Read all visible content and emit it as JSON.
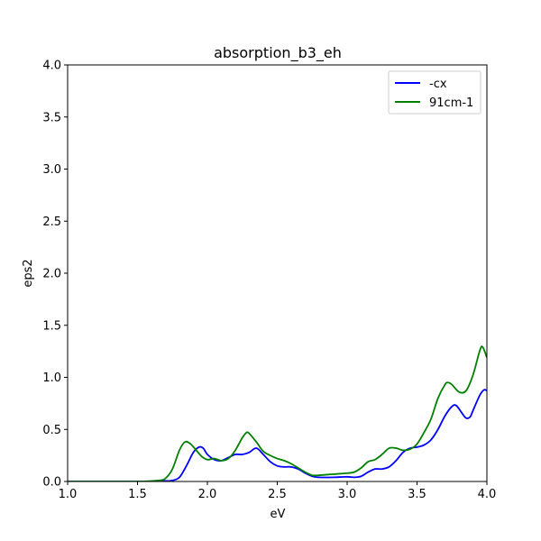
{
  "chart_data": {
    "type": "line",
    "title": "absorption_b3_eh",
    "xlabel": "eV",
    "ylabel": "eps2",
    "xlim": [
      1.0,
      4.0
    ],
    "ylim": [
      0.0,
      4.0
    ],
    "x_ticks": [
      "1.0",
      "1.5",
      "2.0",
      "2.5",
      "3.0",
      "3.5",
      "4.0"
    ],
    "y_ticks": [
      "0.0",
      "0.5",
      "1.0",
      "1.5",
      "2.0",
      "2.5",
      "3.0",
      "3.5",
      "4.0"
    ],
    "grid": false,
    "legend_position": "upper-right",
    "series": [
      {
        "name": "-cx",
        "color": "#0000ff",
        "x": [
          1.0,
          1.5,
          1.7,
          1.75,
          1.8,
          1.85,
          1.9,
          1.94,
          1.97,
          2.0,
          2.05,
          2.1,
          2.15,
          2.2,
          2.25,
          2.3,
          2.35,
          2.4,
          2.45,
          2.5,
          2.55,
          2.6,
          2.65,
          2.7,
          2.75,
          2.8,
          2.9,
          3.0,
          3.05,
          3.1,
          3.15,
          3.2,
          3.25,
          3.3,
          3.35,
          3.4,
          3.45,
          3.5,
          3.55,
          3.6,
          3.65,
          3.7,
          3.75,
          3.78,
          3.82,
          3.85,
          3.88,
          3.9,
          3.95,
          3.98,
          4.0
        ],
        "y": [
          0.0,
          0.0,
          0.005,
          0.01,
          0.04,
          0.15,
          0.28,
          0.33,
          0.32,
          0.26,
          0.21,
          0.2,
          0.23,
          0.26,
          0.26,
          0.28,
          0.32,
          0.26,
          0.19,
          0.15,
          0.14,
          0.14,
          0.12,
          0.08,
          0.05,
          0.04,
          0.04,
          0.045,
          0.04,
          0.05,
          0.09,
          0.12,
          0.12,
          0.14,
          0.2,
          0.28,
          0.32,
          0.33,
          0.35,
          0.4,
          0.5,
          0.63,
          0.72,
          0.73,
          0.66,
          0.61,
          0.62,
          0.68,
          0.83,
          0.88,
          0.87
        ]
      },
      {
        "name": "91cm-1",
        "color": "#008000",
        "x": [
          1.0,
          1.5,
          1.65,
          1.7,
          1.75,
          1.8,
          1.84,
          1.88,
          1.92,
          1.96,
          2.0,
          2.05,
          2.1,
          2.15,
          2.2,
          2.25,
          2.28,
          2.3,
          2.35,
          2.4,
          2.45,
          2.5,
          2.55,
          2.6,
          2.65,
          2.7,
          2.75,
          2.8,
          2.9,
          3.0,
          3.05,
          3.1,
          3.15,
          3.2,
          3.25,
          3.3,
          3.35,
          3.4,
          3.45,
          3.5,
          3.55,
          3.6,
          3.65,
          3.7,
          3.72,
          3.75,
          3.8,
          3.85,
          3.9,
          3.95,
          3.97,
          4.0
        ],
        "y": [
          0.0,
          0.0,
          0.01,
          0.03,
          0.12,
          0.3,
          0.38,
          0.36,
          0.3,
          0.24,
          0.21,
          0.22,
          0.2,
          0.22,
          0.3,
          0.42,
          0.47,
          0.46,
          0.38,
          0.29,
          0.25,
          0.22,
          0.2,
          0.17,
          0.13,
          0.09,
          0.06,
          0.06,
          0.07,
          0.08,
          0.09,
          0.13,
          0.19,
          0.21,
          0.26,
          0.32,
          0.32,
          0.3,
          0.31,
          0.36,
          0.47,
          0.6,
          0.8,
          0.93,
          0.95,
          0.93,
          0.86,
          0.87,
          1.02,
          1.26,
          1.29,
          1.19
        ]
      }
    ]
  }
}
